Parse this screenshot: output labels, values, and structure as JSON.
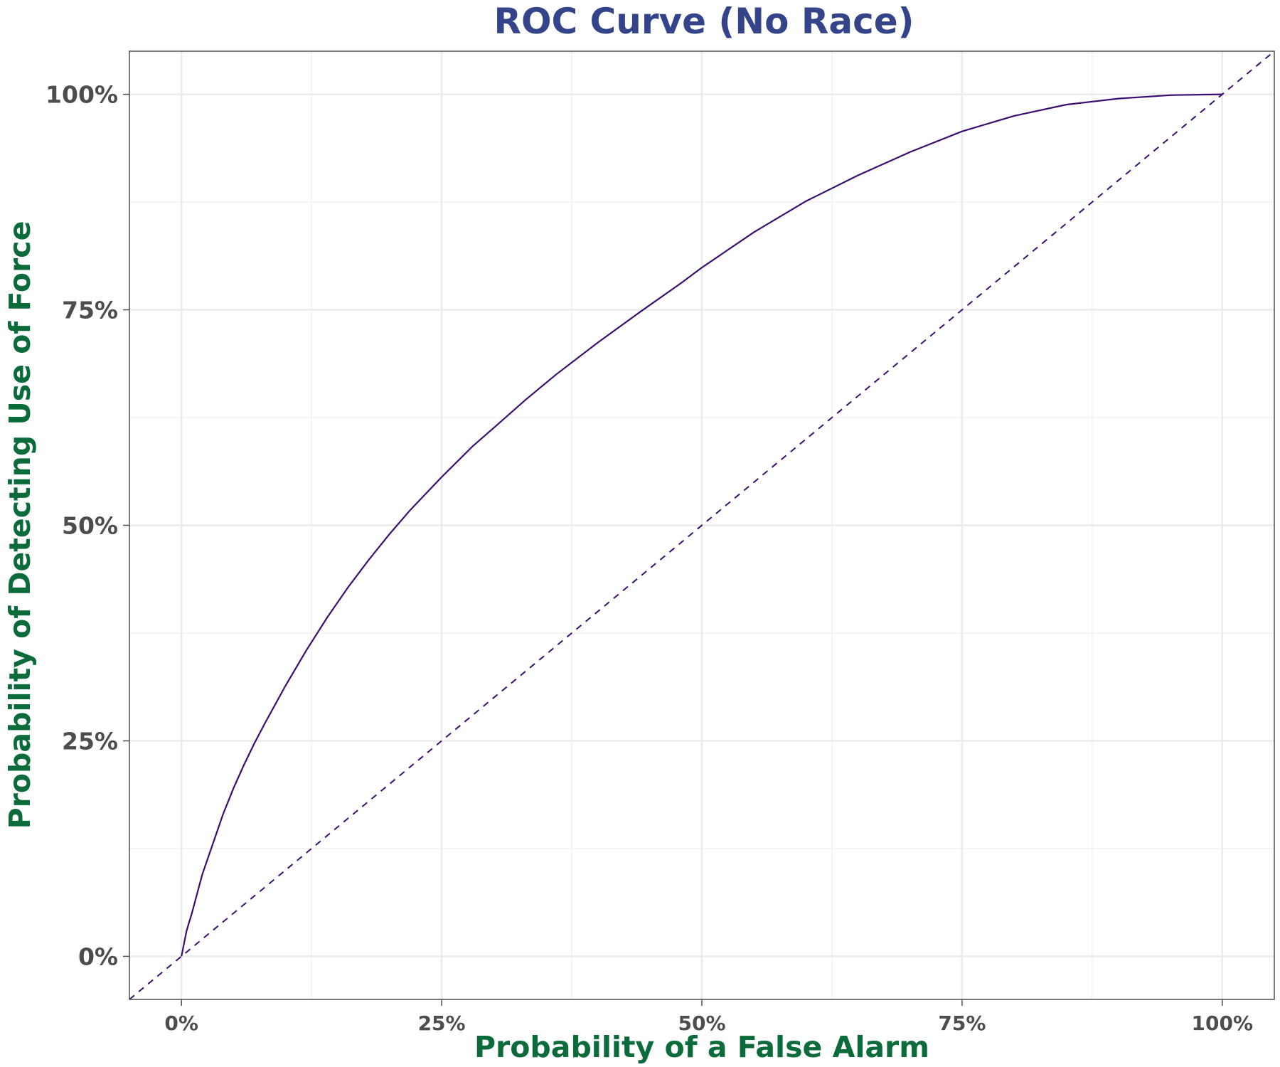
{
  "chart_data": {
    "type": "line",
    "title": "ROC Curve (No Race)",
    "xlabel": "Probability of a False Alarm",
    "ylabel": "Probability of Detecting Use of Force",
    "xlim": [
      -0.05,
      1.05
    ],
    "ylim": [
      -0.05,
      1.05
    ],
    "x_ticks": [
      0,
      0.25,
      0.5,
      0.75,
      1
    ],
    "x_tick_labels": [
      "0%",
      "25%",
      "50%",
      "75%",
      "100%"
    ],
    "y_ticks": [
      0,
      0.25,
      0.5,
      0.75,
      1
    ],
    "y_tick_labels": [
      "0%",
      "25%",
      "50%",
      "75%",
      "100%"
    ],
    "minor_ticks": [
      0.125,
      0.375,
      0.625,
      0.875
    ],
    "grid": true,
    "line_color": "#3b0f70",
    "series": [
      {
        "x": [
          0,
          0.005,
          0.01,
          0.02,
          0.03,
          0.04,
          0.05,
          0.06,
          0.07,
          0.08,
          0.1,
          0.12,
          0.14,
          0.16,
          0.18,
          0.2,
          0.22,
          0.25,
          0.28,
          0.3,
          0.33,
          0.36,
          0.4,
          0.44,
          0.48,
          0.5,
          0.55,
          0.6,
          0.65,
          0.7,
          0.75,
          0.8,
          0.85,
          0.9,
          0.95,
          1.0
        ],
        "y": [
          0,
          0.03,
          0.05,
          0.095,
          0.13,
          0.165,
          0.195,
          0.222,
          0.247,
          0.27,
          0.314,
          0.355,
          0.393,
          0.428,
          0.46,
          0.49,
          0.518,
          0.556,
          0.592,
          0.613,
          0.645,
          0.675,
          0.712,
          0.747,
          0.781,
          0.799,
          0.84,
          0.876,
          0.906,
          0.933,
          0.957,
          0.975,
          0.988,
          0.995,
          0.999,
          1.0
        ]
      }
    ],
    "reference_line": {
      "x": [
        -0.05,
        1.05
      ],
      "y": [
        -0.05,
        1.05
      ],
      "style": "dashed"
    }
  }
}
